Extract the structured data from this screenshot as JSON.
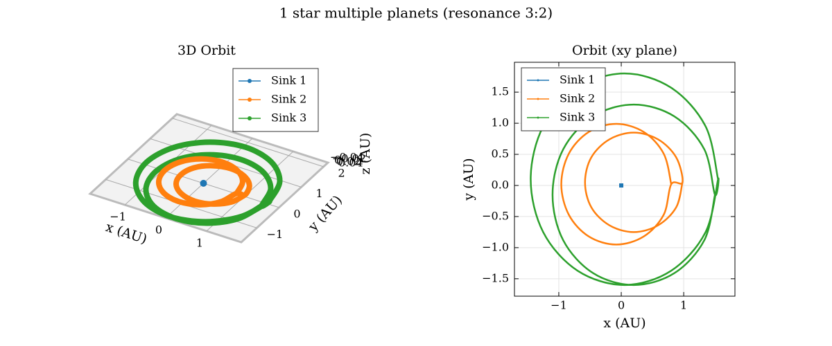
{
  "title": "1 star multiple planets (resonance 3:2)",
  "chart_data": [
    {
      "type": "line3d",
      "title": "3D Orbit",
      "xlabel": "x (AU)",
      "ylabel": "y (AU)",
      "zlabel": "z (AU)",
      "xlim": [
        -1.85,
        1.85
      ],
      "ylim": [
        -1.7,
        2.2
      ],
      "xticks": [
        {
          "value": -1,
          "label": "−1"
        },
        0,
        1
      ],
      "yticks": [
        {
          "value": -1,
          "label": "−1"
        },
        0,
        1,
        2
      ],
      "zticks": [
        {
          "value": -0.04,
          "label": "−0.04"
        },
        {
          "value": -0.02,
          "label": "−0.02"
        },
        0,
        0.02,
        0.04
      ],
      "grid": true,
      "legend": "upper center",
      "series": [
        {
          "name": "Sink 1",
          "color": "#1f77b4",
          "x": [
            0
          ],
          "y": [
            0
          ]
        },
        {
          "name": "Sink 2",
          "color": "#ff7f0e",
          "x": [
            0.8,
            0.68,
            0.36,
            -0.08,
            -0.52,
            -0.84,
            -0.96,
            -0.84,
            -0.52,
            -0.08,
            0.36,
            0.68,
            0.8,
            0.98,
            0.88,
            0.59,
            0.2,
            -0.19,
            -0.48,
            -0.58,
            -0.48,
            -0.19,
            0.2,
            0.59,
            0.88,
            0.98
          ],
          "y": [
            0.02,
            0.51,
            0.86,
            0.99,
            0.86,
            0.51,
            0.02,
            -0.47,
            -0.82,
            -0.95,
            -0.82,
            -0.47,
            0.02,
            0.05,
            0.45,
            0.74,
            0.85,
            0.74,
            0.45,
            0.05,
            -0.35,
            -0.64,
            -0.75,
            -0.64,
            -0.35,
            0.05
          ]
        },
        {
          "name": "Sink 3",
          "color": "#2ca02c",
          "x": [
            1.55,
            1.35,
            0.8,
            0.05,
            -0.7,
            -1.25,
            -1.45,
            -1.25,
            -0.7,
            0.05,
            0.8,
            1.35,
            1.55,
            1.5,
            1.33,
            0.85,
            0.2,
            -0.45,
            -0.93,
            -1.1,
            -0.93,
            -0.45,
            0.2,
            0.85,
            1.33,
            1.5
          ],
          "y": [
            0.1,
            0.95,
            1.57,
            1.8,
            1.57,
            0.95,
            0.1,
            -0.75,
            -1.37,
            -1.6,
            -1.37,
            -0.75,
            0.1,
            -0.15,
            0.58,
            1.11,
            1.3,
            1.11,
            0.58,
            -0.15,
            -0.88,
            -1.41,
            -1.6,
            -1.41,
            -0.88,
            -0.15
          ]
        }
      ]
    },
    {
      "type": "line",
      "title": "Orbit (xy plane)",
      "xlabel": "x (AU)",
      "ylabel": "y (AU)",
      "xlim": [
        -1.71,
        1.82
      ],
      "ylim": [
        -1.78,
        1.98
      ],
      "xticks": [
        {
          "value": -1,
          "label": "−1"
        },
        0,
        1
      ],
      "yticks": [
        {
          "value": -1.5,
          "label": "−1.5"
        },
        {
          "value": -1.0,
          "label": "−1.0"
        },
        {
          "value": -0.5,
          "label": "−0.5"
        },
        {
          "value": 0,
          "label": "0.0"
        },
        0.5,
        {
          "value": 1,
          "label": "1.0"
        },
        1.5
      ],
      "grid": true,
      "legend": "upper left",
      "series": [
        {
          "name": "Sink 1",
          "color": "#1f77b4",
          "x": [
            0
          ],
          "y": [
            0
          ]
        },
        {
          "name": "Sink 2",
          "color": "#ff7f0e",
          "x": [
            0.8,
            0.68,
            0.36,
            -0.08,
            -0.52,
            -0.84,
            -0.96,
            -0.84,
            -0.52,
            -0.08,
            0.36,
            0.68,
            0.8,
            0.98,
            0.88,
            0.59,
            0.2,
            -0.19,
            -0.48,
            -0.58,
            -0.48,
            -0.19,
            0.2,
            0.59,
            0.88,
            0.98
          ],
          "y": [
            0.02,
            0.51,
            0.86,
            0.99,
            0.86,
            0.51,
            0.02,
            -0.47,
            -0.82,
            -0.95,
            -0.82,
            -0.47,
            0.02,
            0.05,
            0.45,
            0.74,
            0.85,
            0.74,
            0.45,
            0.05,
            -0.35,
            -0.64,
            -0.75,
            -0.64,
            -0.35,
            0.05
          ]
        },
        {
          "name": "Sink 3",
          "color": "#2ca02c",
          "x": [
            1.55,
            1.35,
            0.8,
            0.05,
            -0.7,
            -1.25,
            -1.45,
            -1.25,
            -0.7,
            0.05,
            0.8,
            1.35,
            1.55,
            1.5,
            1.33,
            0.85,
            0.2,
            -0.45,
            -0.93,
            -1.1,
            -0.93,
            -0.45,
            0.2,
            0.85,
            1.33,
            1.5
          ],
          "y": [
            0.1,
            0.95,
            1.57,
            1.8,
            1.57,
            0.95,
            0.1,
            -0.75,
            -1.37,
            -1.6,
            -1.37,
            -0.75,
            0.1,
            -0.15,
            0.58,
            1.11,
            1.3,
            1.11,
            0.58,
            -0.15,
            -0.88,
            -1.41,
            -1.6,
            -1.41,
            -0.88,
            -0.15
          ]
        }
      ]
    }
  ]
}
